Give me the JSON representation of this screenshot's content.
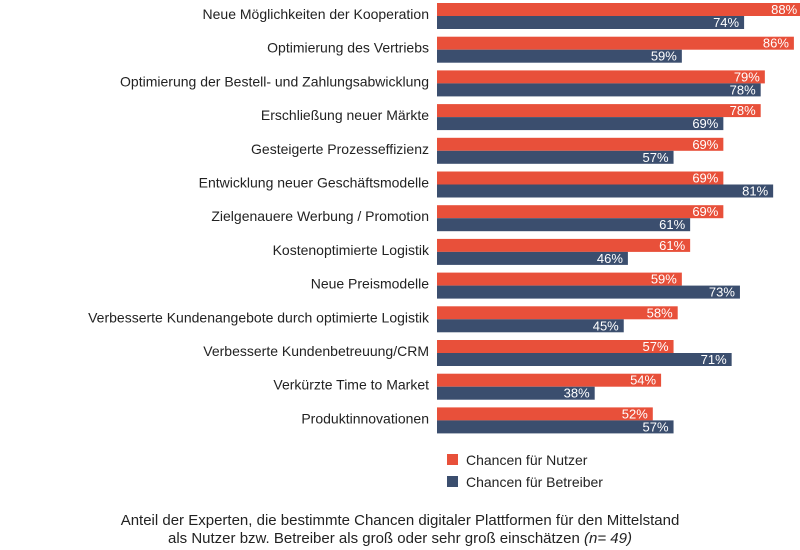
{
  "chart_data": {
    "type": "bar",
    "orientation": "horizontal",
    "categories": [
      "Neue Möglichkeiten der Kooperation",
      "Optimierung des Vertriebs",
      "Optimierung der Bestell- und Zahlungsabwicklung",
      "Erschließung neuer Märkte",
      "Gesteigerte Prozesseffizienz",
      "Entwicklung neuer Geschäftsmodelle",
      "Zielgenauere Werbung / Promotion",
      "Kostenoptimierte Logistik",
      "Neue Preismodelle",
      "Verbesserte Kundenangebote durch optimierte Logistik",
      "Verbesserte Kundenbetreuung/CRM",
      "Verkürzte Time to Market",
      "Produktinnovationen"
    ],
    "series": [
      {
        "name": "Chancen für Nutzer",
        "color": "#E8503A",
        "values": [
          88,
          86,
          79,
          78,
          69,
          69,
          69,
          61,
          59,
          58,
          57,
          54,
          52
        ],
        "labels": [
          "88%",
          "86%",
          "79%",
          "78%",
          "69%",
          "69%",
          "69%",
          "61%",
          "59%",
          "58%",
          "57%",
          "54%",
          "52%"
        ]
      },
      {
        "name": "Chancen für Betreiber",
        "color": "#3B4E6E",
        "values": [
          74,
          59,
          78,
          69,
          57,
          81,
          61,
          46,
          73,
          45,
          71,
          38,
          57
        ],
        "labels": [
          "74%",
          "59%",
          "78%",
          "69%",
          "57%",
          "81%",
          "61%",
          "46%",
          "73%",
          "45%",
          "71%",
          "38%",
          "57%"
        ]
      }
    ],
    "unit": "%",
    "xlim": [
      0,
      100
    ],
    "legend_position": "bottom-right",
    "caption": {
      "line1": "Anteil der Experten, die  bestimmte Chancen digitaler Plattformen für den Mittelstand",
      "line2": "als Nutzer bzw. Betreiber als groß oder sehr groß einschätzen",
      "note": "(n= 49)"
    }
  }
}
